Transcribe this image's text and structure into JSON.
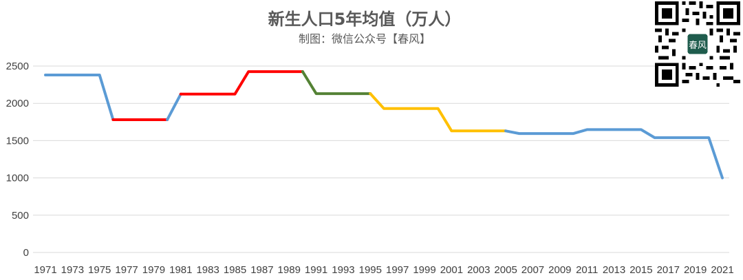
{
  "chart_data": {
    "type": "line",
    "title": "新生人口5年均值（万人）",
    "subtitle": "制图：微信公众号【春风】",
    "ylim": [
      0,
      2500
    ],
    "yticks": [
      0,
      500,
      1000,
      1500,
      2000,
      2500
    ],
    "x_tick_labels": [
      "1971",
      "1973",
      "1975",
      "1977",
      "1979",
      "1981",
      "1983",
      "1985",
      "1987",
      "1989",
      "1991",
      "1993",
      "1995",
      "1997",
      "1999",
      "2001",
      "2003",
      "2005",
      "2007",
      "2009",
      "2011",
      "2013",
      "2015",
      "2017",
      "2019",
      "2021"
    ],
    "grid": true,
    "x": [
      1971,
      1972,
      1973,
      1974,
      1975,
      1976,
      1977,
      1978,
      1979,
      1980,
      1981,
      1982,
      1983,
      1984,
      1985,
      1986,
      1987,
      1988,
      1989,
      1990,
      1991,
      1992,
      1993,
      1994,
      1995,
      1996,
      1997,
      1998,
      1999,
      2000,
      2001,
      2002,
      2003,
      2004,
      2005,
      2006,
      2007,
      2008,
      2009,
      2010,
      2011,
      2012,
      2013,
      2014,
      2015,
      2016,
      2017,
      2018,
      2019,
      2020,
      2021
    ],
    "values": [
      2380,
      2380,
      2380,
      2380,
      2380,
      1780,
      1780,
      1780,
      1780,
      1780,
      2125,
      2125,
      2125,
      2125,
      2125,
      2425,
      2425,
      2425,
      2425,
      2425,
      2130,
      2130,
      2130,
      2130,
      2130,
      1930,
      1930,
      1930,
      1930,
      1930,
      1630,
      1630,
      1630,
      1630,
      1630,
      1595,
      1595,
      1595,
      1595,
      1595,
      1648,
      1648,
      1648,
      1648,
      1648,
      1540,
      1540,
      1540,
      1540,
      1540,
      1000
    ],
    "segments": [
      {
        "from": 1971,
        "to": 1976,
        "color": "#5B9BD5"
      },
      {
        "from": 1976,
        "to": 1980,
        "color": "#FF0000"
      },
      {
        "from": 1980,
        "to": 1981,
        "color": "#5B9BD5"
      },
      {
        "from": 1981,
        "to": 1990,
        "color": "#FF0000"
      },
      {
        "from": 1990,
        "to": 1995,
        "color": "#548235"
      },
      {
        "from": 1995,
        "to": 2005,
        "color": "#FFC000"
      },
      {
        "from": 2005,
        "to": 2021,
        "color": "#5B9BD5"
      }
    ]
  },
  "qr_code": {
    "center_text": "春风"
  }
}
